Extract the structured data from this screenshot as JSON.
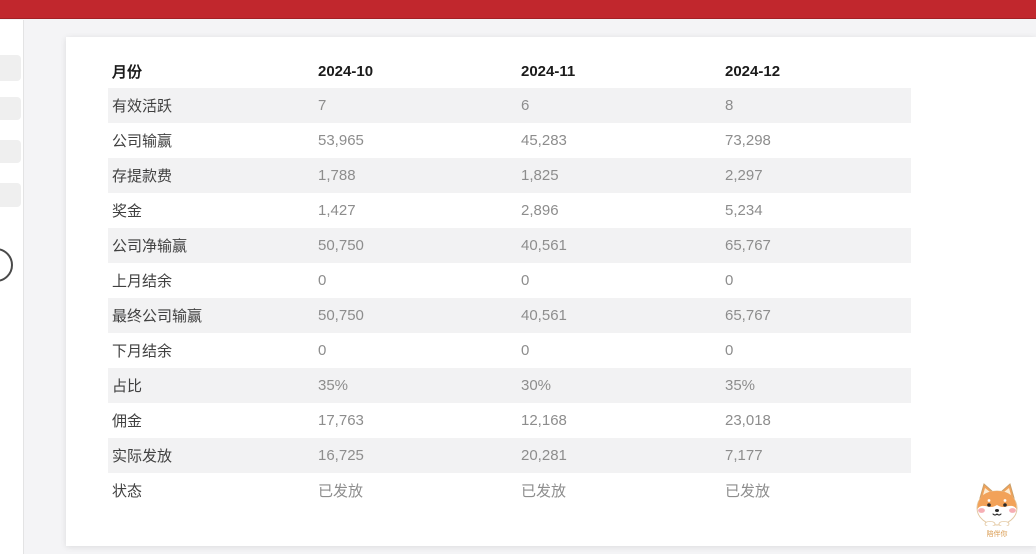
{
  "topbar": {
    "color": "#c1272d"
  },
  "sidebar": {
    "skeleton_items": [
      "",
      "",
      "",
      ""
    ],
    "toggle_icon": "collapse-toggle"
  },
  "table": {
    "corner_label": "月份",
    "columns": [
      "2024-10",
      "2024-11",
      "2024-12"
    ],
    "rows": [
      {
        "label": "有效活跃",
        "values": [
          "7",
          "6",
          "8"
        ]
      },
      {
        "label": "公司输赢",
        "values": [
          "53,965",
          "45,283",
          "73,298"
        ]
      },
      {
        "label": "存提款费",
        "values": [
          "1,788",
          "1,825",
          "2,297"
        ]
      },
      {
        "label": "奖金",
        "values": [
          "1,427",
          "2,896",
          "5,234"
        ]
      },
      {
        "label": "公司净输赢",
        "values": [
          "50,750",
          "40,561",
          "65,767"
        ]
      },
      {
        "label": "上月结余",
        "values": [
          "0",
          "0",
          "0"
        ]
      },
      {
        "label": "最终公司输赢",
        "values": [
          "50,750",
          "40,561",
          "65,767"
        ]
      },
      {
        "label": "下月结余",
        "values": [
          "0",
          "0",
          "0"
        ]
      },
      {
        "label": "占比",
        "values": [
          "35%",
          "30%",
          "35%"
        ]
      },
      {
        "label": "佣金",
        "values": [
          "17,763",
          "12,168",
          "23,018"
        ]
      },
      {
        "label": "实际发放",
        "values": [
          "16,725",
          "20,281",
          "7,177"
        ]
      },
      {
        "label": "状态",
        "values": [
          "已发放",
          "已发放",
          "已发放"
        ]
      }
    ]
  },
  "mascot": {
    "label": "陪伴你"
  },
  "colors": {
    "topbar_red": "#c1272d",
    "topbar_red_dark": "#a32025",
    "page_bg": "#f4f4f6",
    "stripe": "#f2f2f3",
    "label_text": "#404040",
    "value_text": "#8d8d8d"
  }
}
